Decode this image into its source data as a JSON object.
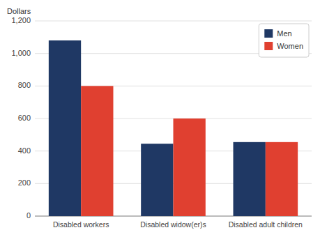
{
  "chart_data": {
    "type": "bar",
    "ylabel": "Dollars",
    "categories": [
      "Disabled workers",
      "Disabled widow(er)s",
      "Disabled adult children"
    ],
    "series": [
      {
        "name": "Men",
        "color": "#1f3864",
        "values": [
          1080,
          445,
          455
        ]
      },
      {
        "name": "Women",
        "color": "#e04030",
        "values": [
          800,
          600,
          455
        ]
      }
    ],
    "ylim": [
      0,
      1200
    ],
    "yticks": [
      0,
      200,
      400,
      600,
      800,
      {
        "value": 1000,
        "label": "1,000"
      },
      {
        "value": 1200,
        "label": "1,200"
      }
    ],
    "grid": true,
    "legend": "upper right"
  }
}
